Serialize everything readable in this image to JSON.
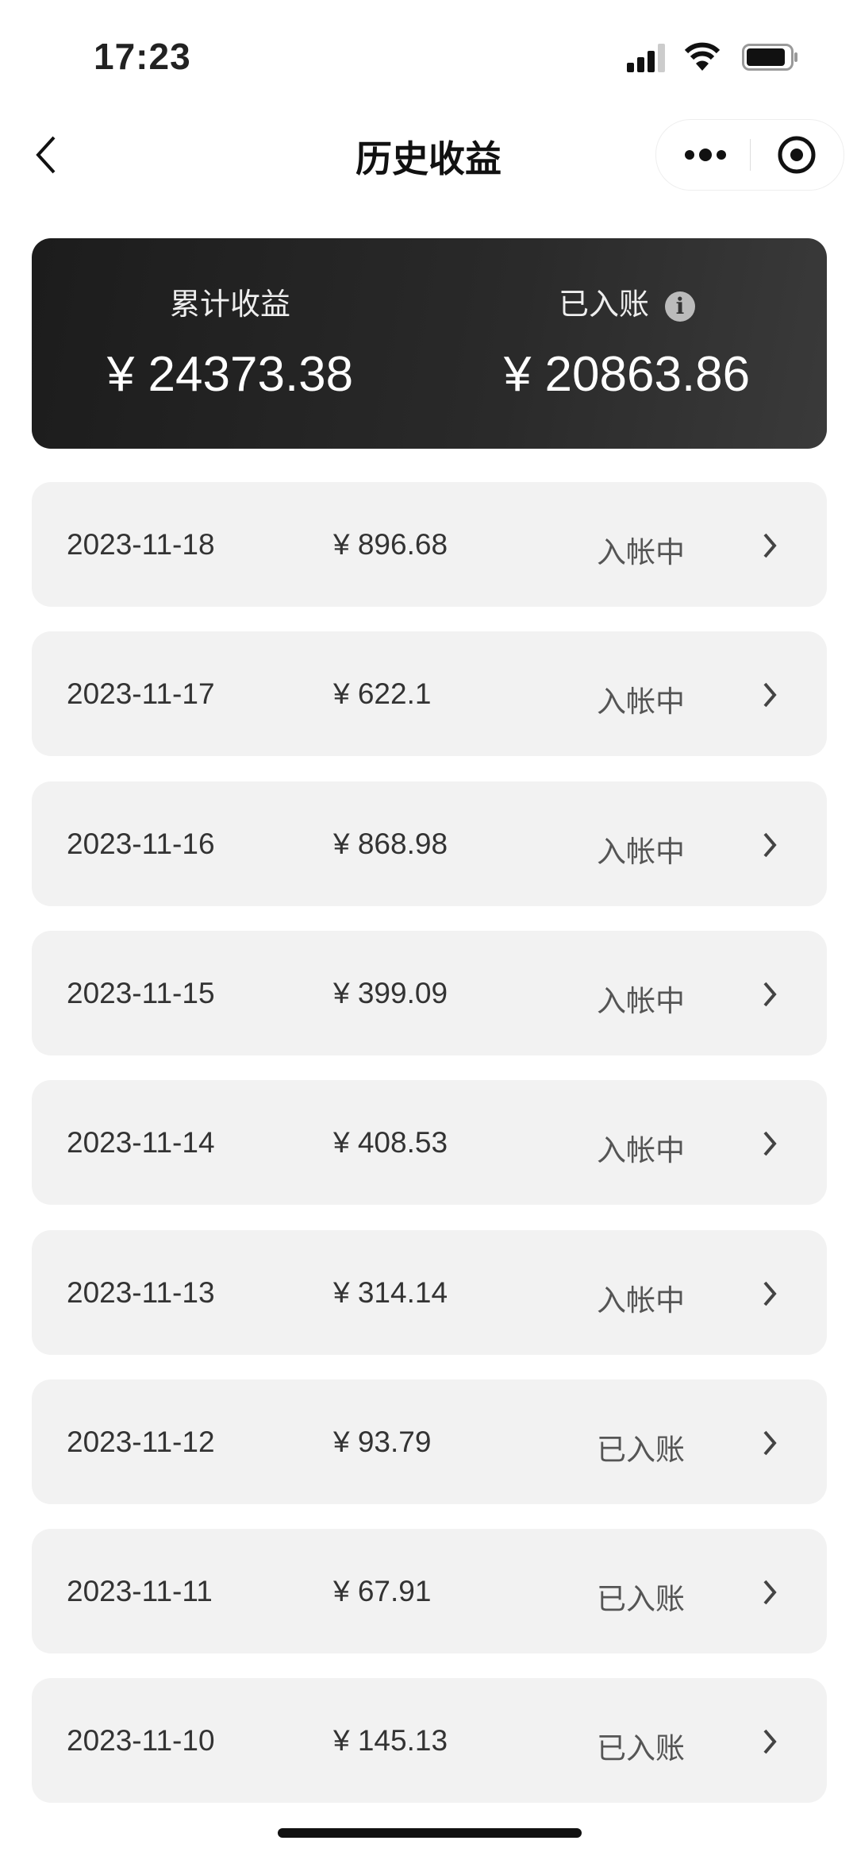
{
  "status_bar": {
    "time": "17:23",
    "icons": [
      "signal-icon",
      "wifi-icon",
      "battery-icon"
    ]
  },
  "nav": {
    "title": "历史收益",
    "back_icon": "chevron-left-icon",
    "more_icon": "more-dots-icon",
    "close_icon": "target-circle-icon"
  },
  "summary": {
    "total_label": "累计收益",
    "total_value": "¥ 24373.38",
    "settled_label": "已入账",
    "settled_info_icon": "i",
    "settled_value": "¥ 20863.86"
  },
  "records": [
    {
      "date": "2023-11-18",
      "amount": "¥ 896.68",
      "status": "入帐中"
    },
    {
      "date": "2023-11-17",
      "amount": "¥ 622.1",
      "status": "入帐中"
    },
    {
      "date": "2023-11-16",
      "amount": "¥ 868.98",
      "status": "入帐中"
    },
    {
      "date": "2023-11-15",
      "amount": "¥ 399.09",
      "status": "入帐中"
    },
    {
      "date": "2023-11-14",
      "amount": "¥ 408.53",
      "status": "入帐中"
    },
    {
      "date": "2023-11-13",
      "amount": "¥ 314.14",
      "status": "入帐中"
    },
    {
      "date": "2023-11-12",
      "amount": "¥ 93.79",
      "status": "已入账"
    },
    {
      "date": "2023-11-11",
      "amount": "¥ 67.91",
      "status": "已入账"
    },
    {
      "date": "2023-11-10",
      "amount": "¥ 145.13",
      "status": "已入账"
    }
  ]
}
